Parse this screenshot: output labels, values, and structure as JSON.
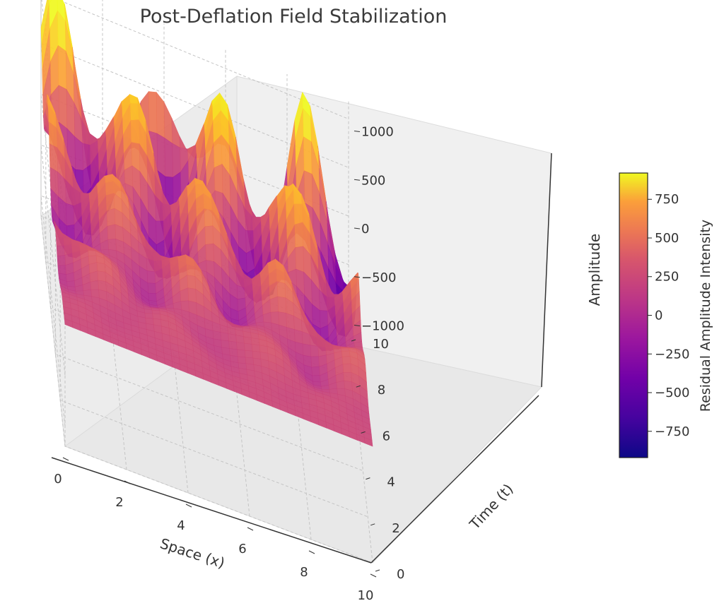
{
  "chart_data": {
    "type": "surface3d",
    "title": "Post-Deflation Field Stabilization",
    "xlabel": "Space (x)",
    "ylabel": "Time (t)",
    "zlabel": "Amplitude",
    "xlim": [
      0,
      10
    ],
    "ylim": [
      0,
      10
    ],
    "zlim": [
      -1200,
      1200
    ],
    "xticks": [
      "0",
      "2",
      "4",
      "6",
      "8",
      "10"
    ],
    "yticks": [
      "0",
      "2",
      "4",
      "6",
      "8",
      "10"
    ],
    "zticks": [
      "−1000",
      "−500",
      "0",
      "500",
      "1000"
    ],
    "colorbar": {
      "label": "Residual Amplitude Intensity",
      "range": [
        -920,
        920
      ],
      "ticks": [
        "−750",
        "−500",
        "−250",
        "0",
        "250",
        "500",
        "750"
      ],
      "colormap": "plasma"
    },
    "surface_description": "Oscillating field whose amplitude grows with time; ridges peak near 1100 toward large t, a trough near -1000 at x=10, t=10"
  }
}
